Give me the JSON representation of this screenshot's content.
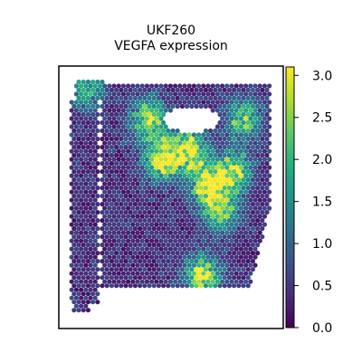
{
  "chart_data": {
    "type": "scatter",
    "title": "UKF260",
    "subtitle": "VEGFA expression",
    "xlabel": "",
    "ylabel": "",
    "colormap": "viridis",
    "colorbar": {
      "range": [
        0.0,
        3.1
      ],
      "ticks": [
        "0.0",
        "0.5",
        "1.0",
        "1.5",
        "2.0",
        "2.5",
        "3.0"
      ]
    },
    "grid": false,
    "legend": "none",
    "hotspots": [
      {
        "x": 0.46,
        "y": 0.35,
        "value": 2.8
      },
      {
        "x": 0.58,
        "y": 0.32,
        "value": 2.6
      },
      {
        "x": 0.66,
        "y": 0.45,
        "value": 2.5
      },
      {
        "x": 0.78,
        "y": 0.4,
        "value": 2.4
      },
      {
        "x": 0.72,
        "y": 0.55,
        "value": 2.2
      },
      {
        "x": 0.4,
        "y": 0.2,
        "value": 2.3
      },
      {
        "x": 0.82,
        "y": 0.2,
        "value": 2.0
      },
      {
        "x": 0.64,
        "y": 0.8,
        "value": 2.6
      },
      {
        "x": 0.12,
        "y": 0.08,
        "value": 1.6
      }
    ]
  }
}
